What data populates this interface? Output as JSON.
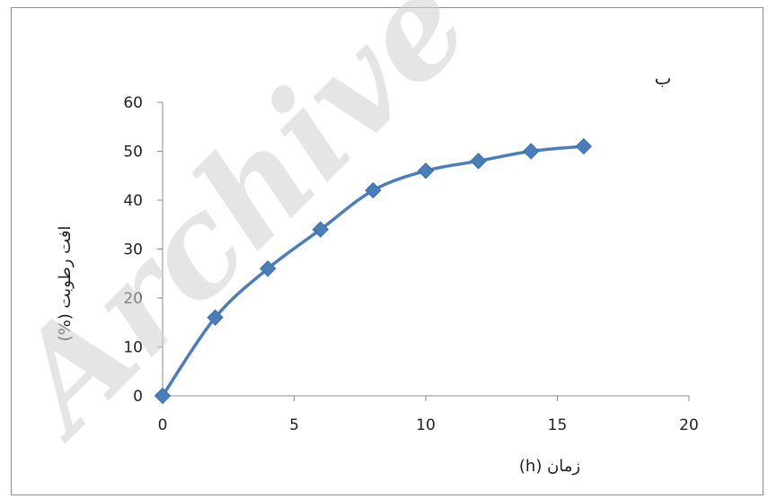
{
  "chart_data": {
    "type": "line",
    "title": "",
    "panel_label": "ب",
    "xlabel": "زمان (h)",
    "ylabel": "افت رطوبت (%)",
    "xlim": [
      0,
      20
    ],
    "ylim": [
      0,
      60
    ],
    "xticks": [
      0,
      5,
      10,
      15,
      20
    ],
    "yticks": [
      0,
      10,
      20,
      30,
      40,
      50,
      60
    ],
    "grid": false,
    "series": [
      {
        "color": "#4a7ebb",
        "marker": "diamond",
        "smooth": true,
        "points": [
          {
            "x": 0,
            "y": 0
          },
          {
            "x": 2,
            "y": 16
          },
          {
            "x": 4,
            "y": 26
          },
          {
            "x": 6,
            "y": 34
          },
          {
            "x": 8,
            "y": 42
          },
          {
            "x": 10,
            "y": 46
          },
          {
            "x": 12,
            "y": 48
          },
          {
            "x": 14,
            "y": 50
          },
          {
            "x": 16,
            "y": 51
          }
        ]
      }
    ]
  },
  "watermark": "Archive"
}
